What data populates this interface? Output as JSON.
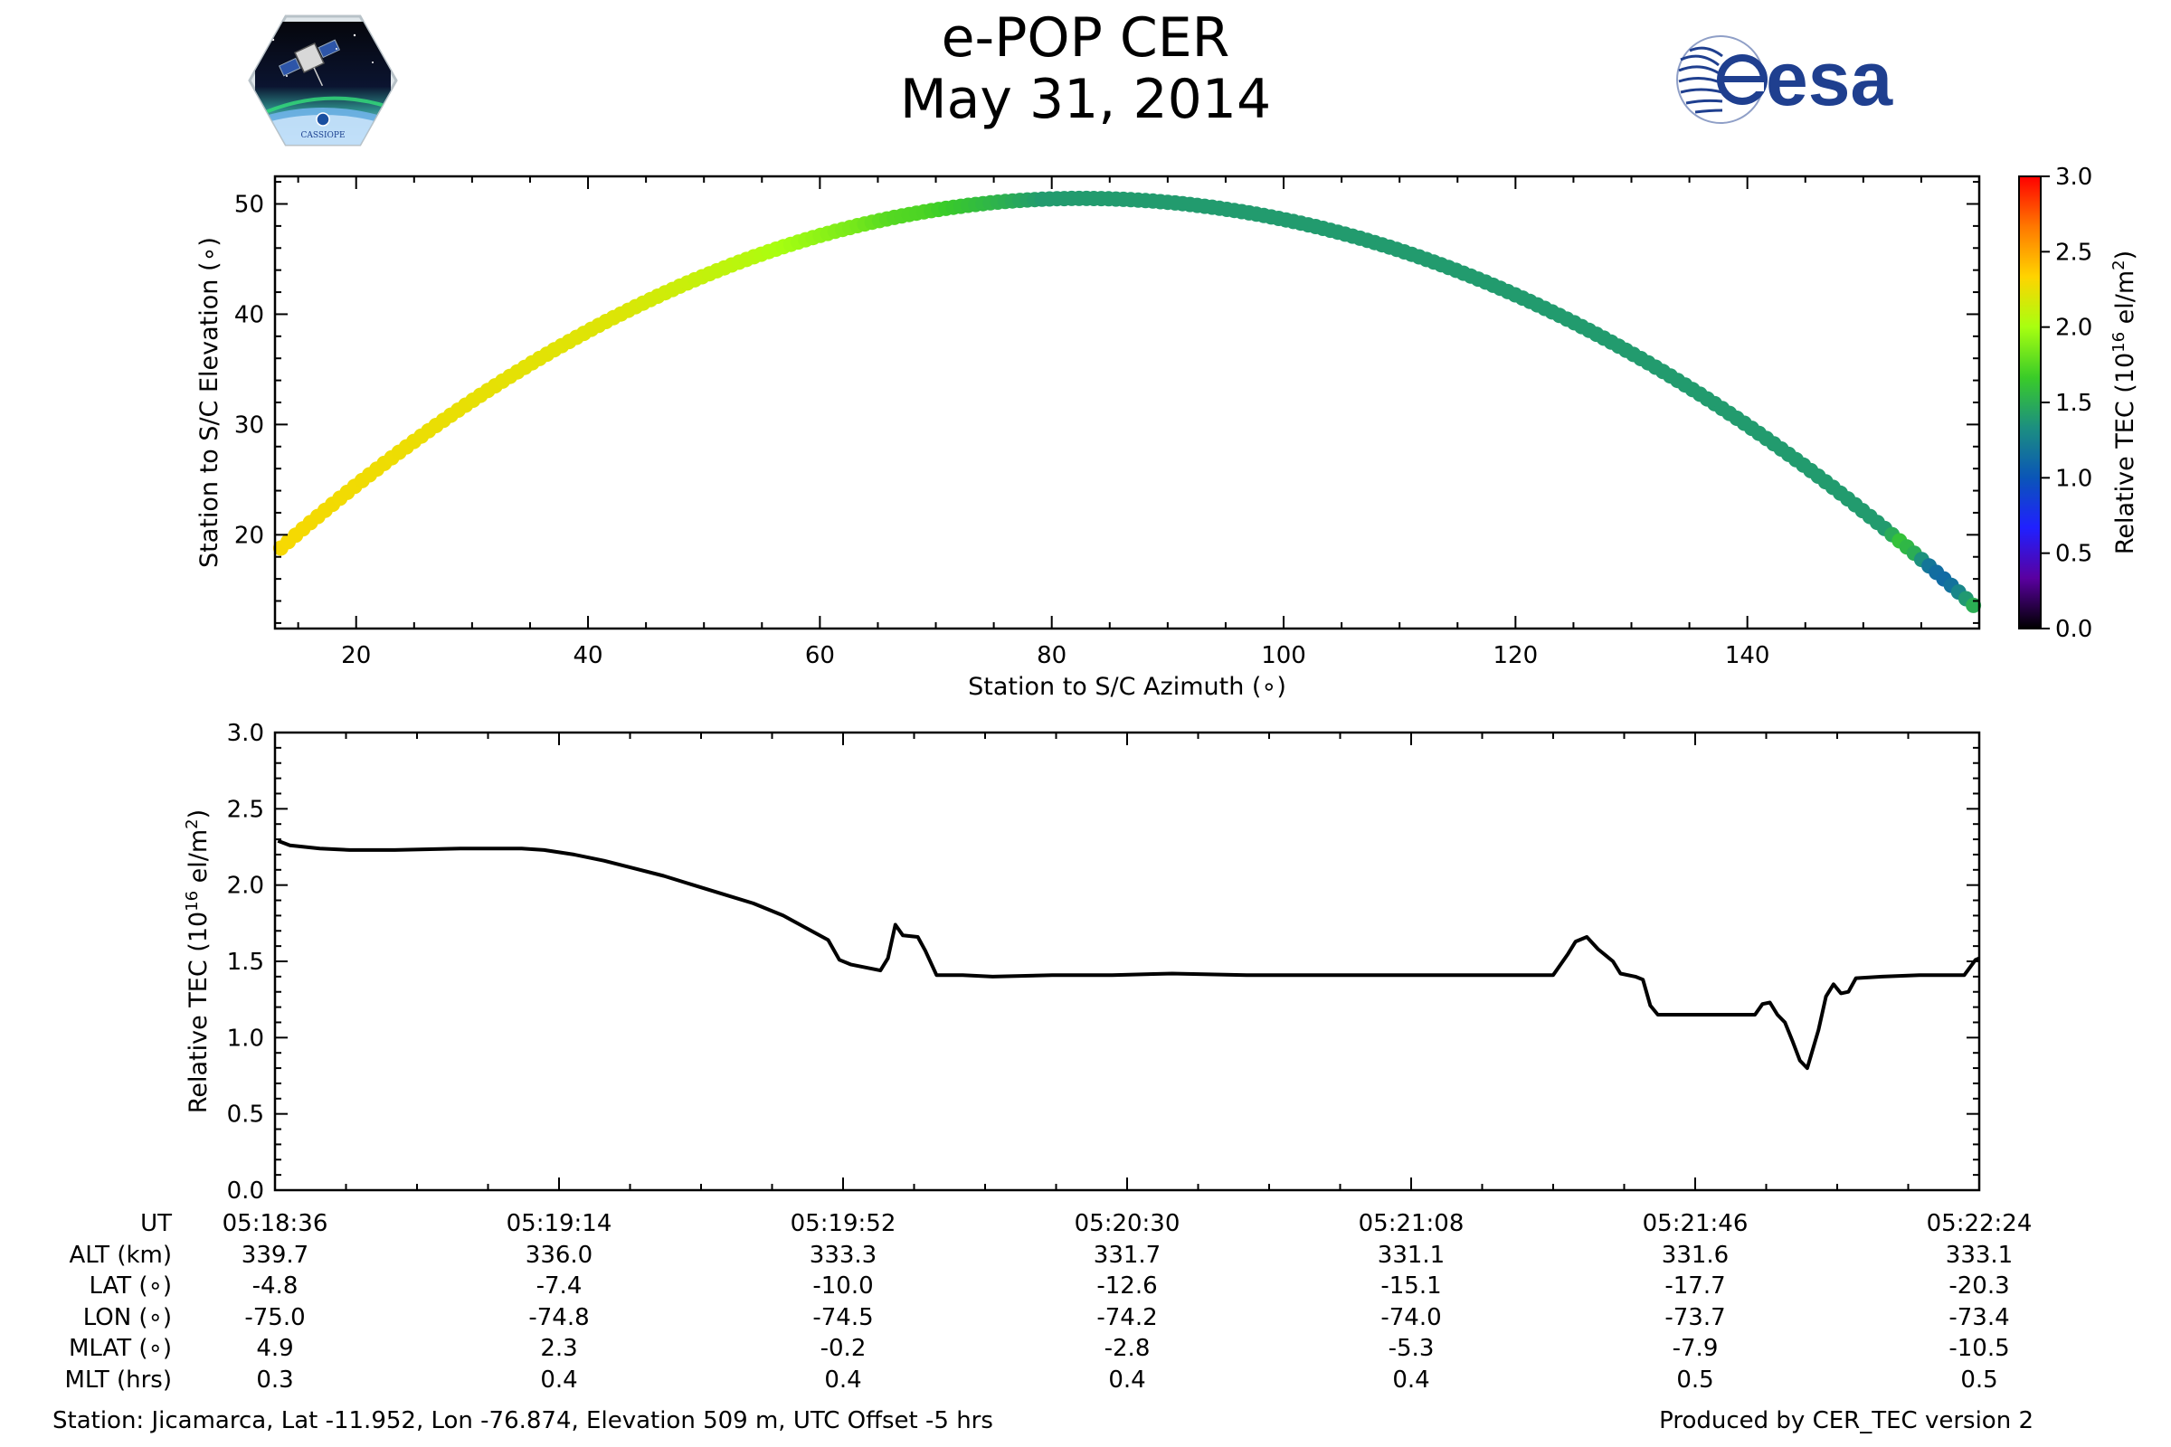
{
  "header": {
    "title": "e-POP CER",
    "subtitle": "May 31, 2014",
    "left_logo_text": "CASSIOPE",
    "right_logo_text": "esa"
  },
  "colors": {
    "esa_blue": "#1f3f8f",
    "line": "#000000",
    "cmap": [
      "#000000",
      "#5a00a0",
      "#2020ff",
      "#0a55b8",
      "#1c8f80",
      "#3acc28",
      "#a8ff10",
      "#ffd400",
      "#ff7800",
      "#ff0000"
    ]
  },
  "chart_data": [
    {
      "id": "sky-track",
      "type": "scatter",
      "xlabel": "Station to S/C Azimuth (∘)",
      "ylabel": "Station to S/C Elevation (∘)",
      "xlim": [
        13,
        160
      ],
      "ylim": [
        11.5,
        52.5
      ],
      "xticks": [
        20,
        40,
        60,
        80,
        100,
        120,
        140
      ],
      "yticks": [
        20,
        30,
        40,
        50
      ],
      "colormap": "gist_rainbow_like",
      "colorbar": {
        "label": "Relative TEC (10",
        "label_sup": "16",
        "label_unit": " el/m",
        "label_unit_sup": "2",
        "label_end": ")",
        "range": [
          0.0,
          3.0
        ],
        "ticks": [
          "0.0",
          "0.5",
          "1.0",
          "1.5",
          "2.0",
          "2.5",
          "3.0"
        ]
      },
      "track_model": {
        "az_start": 13.5,
        "az_end": 159.5,
        "az_peak": 82.5,
        "el_peak": 50.5,
        "el_start": 18.8,
        "el_end": 13.6,
        "points": 230
      },
      "tec_along_track": [
        [
          0.0,
          2.3
        ],
        [
          0.2,
          2.2
        ],
        [
          0.28,
          2.05
        ],
        [
          0.34,
          1.85
        ],
        [
          0.36,
          1.75
        ],
        [
          0.38,
          1.72
        ],
        [
          0.42,
          1.55
        ],
        [
          0.45,
          1.4
        ],
        [
          0.95,
          1.4
        ],
        [
          0.955,
          1.62
        ],
        [
          0.965,
          1.5
        ],
        [
          0.975,
          1.15
        ],
        [
          0.985,
          1.12
        ],
        [
          1.0,
          1.5
        ]
      ]
    },
    {
      "id": "tec-series",
      "type": "line",
      "ylabel": "Relative TEC (10",
      "ylabel_sup": "16",
      "ylabel_unit": " el/m",
      "ylabel_unit_sup": "2",
      "ylabel_end": ")",
      "xlim_seconds": [
        0,
        228
      ],
      "ylim": [
        0.0,
        3.0
      ],
      "yticks": [
        "0.0",
        "0.5",
        "1.0",
        "1.5",
        "2.0",
        "2.5",
        "3.0"
      ],
      "xtick_seconds": [
        0,
        38,
        76,
        114,
        152,
        190,
        228
      ],
      "series": [
        {
          "name": "Relative TEC",
          "points": [
            [
              0.4,
              2.29
            ],
            [
              2,
              2.26
            ],
            [
              6,
              2.24
            ],
            [
              10,
              2.23
            ],
            [
              16,
              2.23
            ],
            [
              25,
              2.24
            ],
            [
              33,
              2.24
            ],
            [
              36,
              2.23
            ],
            [
              40,
              2.2
            ],
            [
              44,
              2.16
            ],
            [
              48,
              2.11
            ],
            [
              52,
              2.06
            ],
            [
              56,
              2.0
            ],
            [
              60,
              1.94
            ],
            [
              64,
              1.88
            ],
            [
              68,
              1.8
            ],
            [
              71,
              1.72
            ],
            [
              74,
              1.64
            ],
            [
              75.5,
              1.51
            ],
            [
              77,
              1.48
            ],
            [
              81,
              1.44
            ],
            [
              82,
              1.52
            ],
            [
              83,
              1.74
            ],
            [
              84,
              1.67
            ],
            [
              86,
              1.66
            ],
            [
              87,
              1.57
            ],
            [
              88.5,
              1.41
            ],
            [
              92,
              1.41
            ],
            [
              96,
              1.4
            ],
            [
              104,
              1.41
            ],
            [
              112,
              1.41
            ],
            [
              120,
              1.42
            ],
            [
              130,
              1.41
            ],
            [
              140,
              1.41
            ],
            [
              150,
              1.41
            ],
            [
              162,
              1.41
            ],
            [
              171,
              1.41
            ],
            [
              173,
              1.55
            ],
            [
              174,
              1.63
            ],
            [
              175.5,
              1.66
            ],
            [
              177,
              1.58
            ],
            [
              179,
              1.5
            ],
            [
              180,
              1.42
            ],
            [
              182,
              1.4
            ],
            [
              183,
              1.38
            ],
            [
              184,
              1.21
            ],
            [
              185,
              1.15
            ],
            [
              190,
              1.15
            ],
            [
              198,
              1.15
            ],
            [
              199,
              1.22
            ],
            [
              200,
              1.23
            ],
            [
              201,
              1.15
            ],
            [
              202,
              1.1
            ],
            [
              203,
              0.98
            ],
            [
              204,
              0.85
            ],
            [
              205,
              0.8
            ],
            [
              206.5,
              1.05
            ],
            [
              207.5,
              1.27
            ],
            [
              208.5,
              1.35
            ],
            [
              209.5,
              1.29
            ],
            [
              210.5,
              1.3
            ],
            [
              211.5,
              1.39
            ],
            [
              215,
              1.4
            ],
            [
              220,
              1.41
            ],
            [
              226,
              1.41
            ],
            [
              227.5,
              1.51
            ],
            [
              228,
              1.52
            ]
          ]
        }
      ]
    }
  ],
  "ephemeris": {
    "row_labels": [
      "UT",
      "ALT (km)",
      "LAT (∘)",
      "LON (∘)",
      "MLAT (∘)",
      "MLT (hrs)"
    ],
    "columns": [
      [
        "05:18:36",
        "339.7",
        "-4.8",
        "-75.0",
        "4.9",
        "0.3"
      ],
      [
        "05:19:14",
        "336.0",
        "-7.4",
        "-74.8",
        "2.3",
        "0.4"
      ],
      [
        "05:19:52",
        "333.3",
        "-10.0",
        "-74.5",
        "-0.2",
        "0.4"
      ],
      [
        "05:20:30",
        "331.7",
        "-12.6",
        "-74.2",
        "-2.8",
        "0.4"
      ],
      [
        "05:21:08",
        "331.1",
        "-15.1",
        "-74.0",
        "-5.3",
        "0.4"
      ],
      [
        "05:21:46",
        "331.6",
        "-17.7",
        "-73.7",
        "-7.9",
        "0.5"
      ],
      [
        "05:22:24",
        "333.1",
        "-20.3",
        "-73.4",
        "-10.5",
        "0.5"
      ]
    ]
  },
  "footer": {
    "station": "Station: Jicamarca, Lat -11.952, Lon -76.874, Elevation 509 m, UTC Offset -5 hrs",
    "producer": "Produced by CER_TEC version 2"
  }
}
